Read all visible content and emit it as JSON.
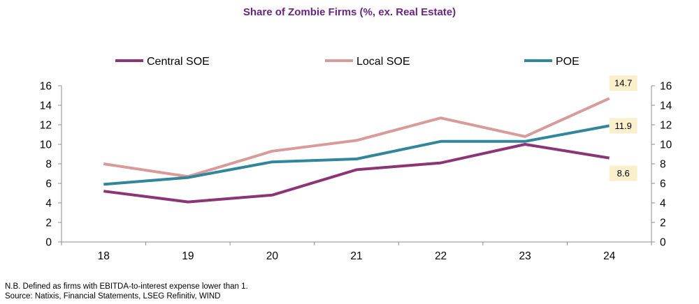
{
  "chart_data": {
    "type": "line",
    "title": "Share of Zombie Firms (%, ex. Real Estate)",
    "categories": [
      "18",
      "19",
      "20",
      "21",
      "22",
      "23",
      "24"
    ],
    "ylim": [
      0,
      16
    ],
    "yticks": [
      0,
      2,
      4,
      6,
      8,
      10,
      12,
      14,
      16
    ],
    "dual_axis": true,
    "grid": false,
    "legend_position": "top",
    "series": [
      {
        "name": "Central SOE",
        "color": "#8b3476",
        "values": [
          5.2,
          4.1,
          4.8,
          7.4,
          8.1,
          10.0,
          8.6
        ]
      },
      {
        "name": "Local SOE",
        "color": "#d99a9a",
        "values": [
          8.0,
          6.7,
          9.3,
          10.4,
          12.7,
          10.8,
          14.7
        ]
      },
      {
        "name": "POE",
        "color": "#31869b",
        "values": [
          5.9,
          6.6,
          8.2,
          8.5,
          10.3,
          10.3,
          11.9
        ]
      }
    ],
    "callouts": [
      {
        "series": 1,
        "label": "14.7"
      },
      {
        "series": 2,
        "label": "11.9"
      },
      {
        "series": 0,
        "label": "8.6"
      }
    ]
  },
  "footnote": "N.B. Defined as firms with EBITDA-to-interest expense lower than 1.",
  "source": "Source: Natixis, Financial Statements, LSEG Refinitiv, WIND"
}
